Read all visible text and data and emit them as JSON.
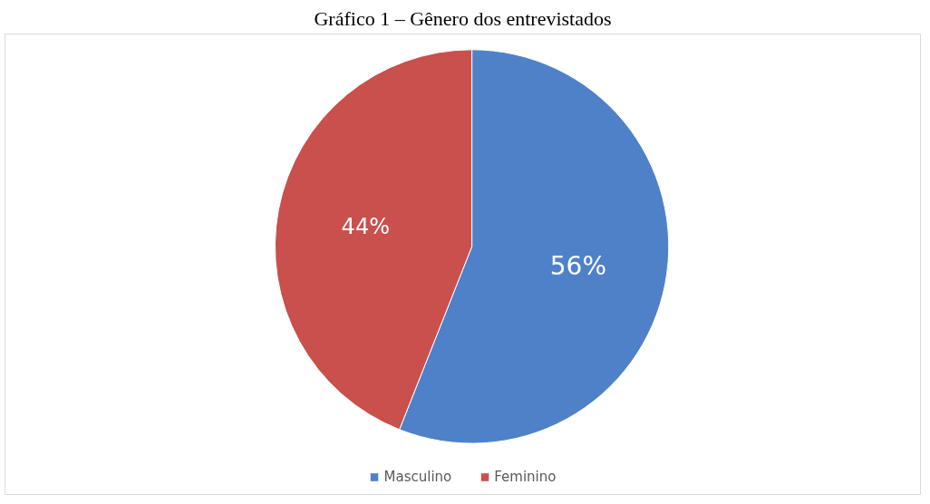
{
  "chart_data": {
    "type": "pie",
    "title": "Gráfico 1 – Gênero dos entrevistados",
    "categories": [
      "Masculino",
      "Feminino"
    ],
    "values": [
      56,
      44
    ],
    "colors": [
      "#4f81c9",
      "#c9504d"
    ],
    "value_labels": [
      "56%",
      "44%"
    ],
    "legend": "bottom"
  }
}
